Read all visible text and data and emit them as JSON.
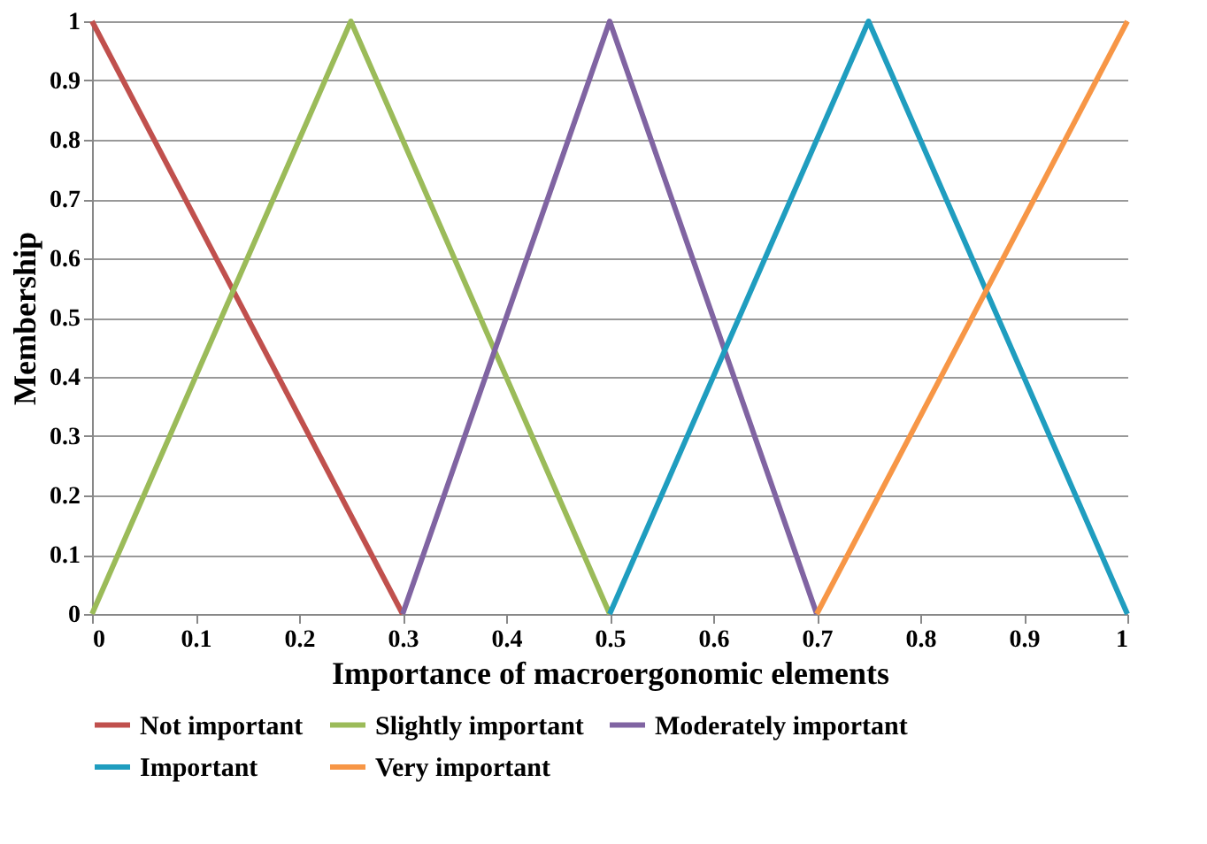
{
  "chart_data": {
    "type": "line",
    "xlabel": "Importance of macroergonomic elements",
    "ylabel": "Membership",
    "series": [
      {
        "name": "Not important",
        "color": "#c0504d",
        "x": [
          0,
          0.3
        ],
        "values": [
          1,
          0
        ]
      },
      {
        "name": "Slightly important",
        "color": "#9bbb59",
        "x": [
          0,
          0.25,
          0.5
        ],
        "values": [
          0,
          1,
          0
        ]
      },
      {
        "name": "Moderately important",
        "color": "#8064a2",
        "x": [
          0.3,
          0.5,
          0.7
        ],
        "values": [
          0,
          1,
          0
        ]
      },
      {
        "name": "Important",
        "color": "#1f9dbf",
        "x": [
          0.5,
          0.75,
          1
        ],
        "values": [
          0,
          1,
          0
        ]
      },
      {
        "name": "Very important",
        "color": "#f79646",
        "x": [
          0.7,
          1
        ],
        "values": [
          0,
          1
        ]
      }
    ],
    "xlim": [
      0,
      1
    ],
    "xticks": [
      0,
      0.1,
      0.2,
      0.3,
      0.4,
      0.5,
      0.6,
      0.7,
      0.8,
      0.9,
      1
    ],
    "ylim": [
      0,
      1
    ],
    "yticks": [
      0,
      0.1,
      0.2,
      0.3,
      0.4,
      0.5,
      0.6,
      0.7,
      0.8,
      0.9,
      1
    ],
    "grid": "y",
    "legend": "bottom",
    "marker": "none",
    "line_style": "solid"
  }
}
